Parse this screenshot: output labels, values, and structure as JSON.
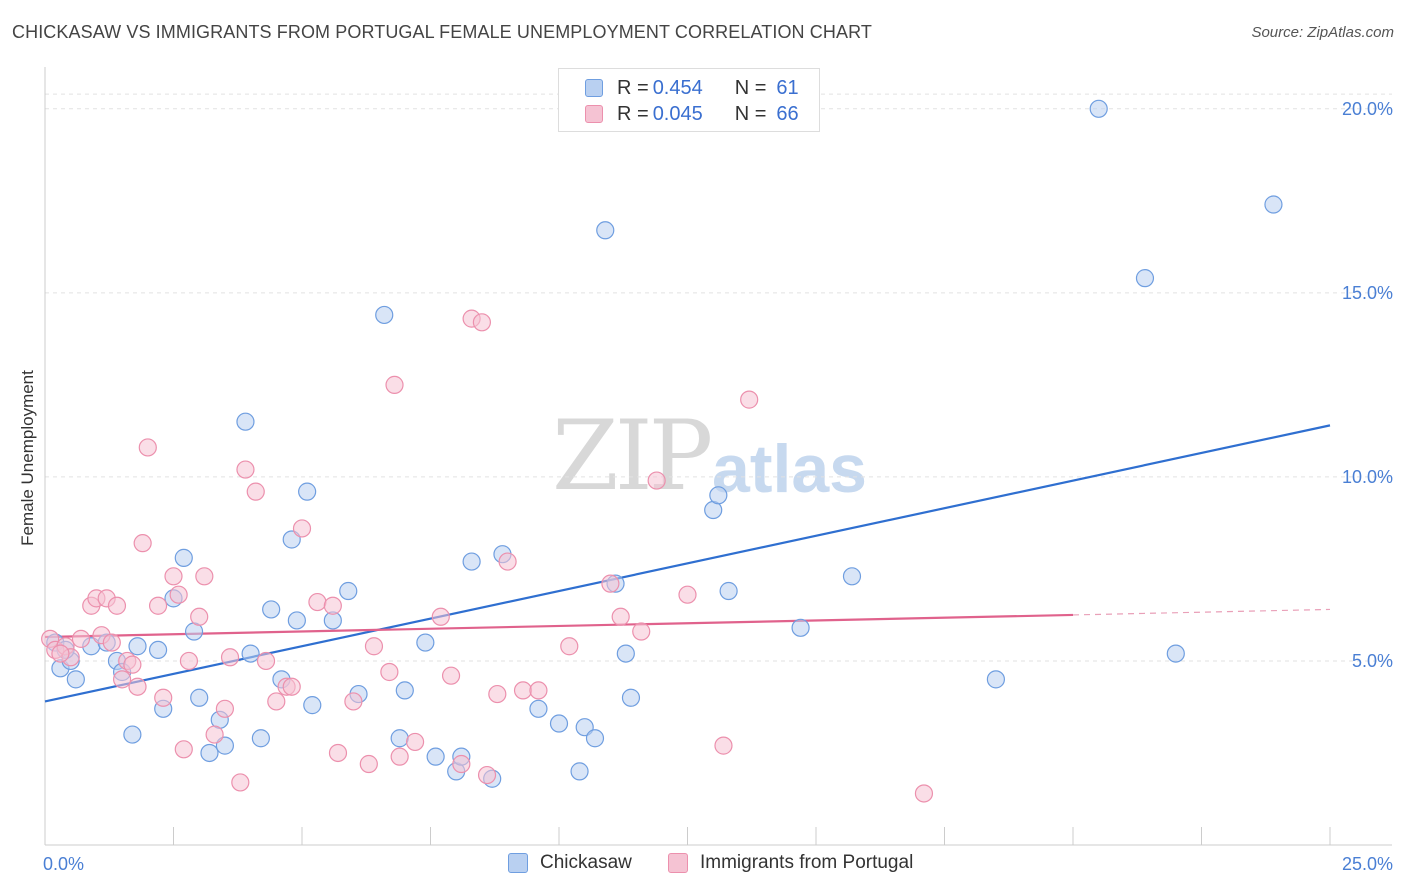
{
  "title": "CHICKASAW VS IMMIGRANTS FROM PORTUGAL FEMALE UNEMPLOYMENT CORRELATION CHART",
  "source": "Source: ZipAtlas.com",
  "watermark": {
    "zip": "ZIP",
    "atlas": "atlas"
  },
  "legend": {
    "rows": [
      {
        "r_label": "R = ",
        "r_value": "0.454",
        "n_label": "N = ",
        "n_value": "61",
        "color": "#6f9ee0"
      },
      {
        "r_label": "R = ",
        "r_value": "0.045",
        "n_label": "N = ",
        "n_value": "66",
        "color": "#ec90ad"
      }
    ]
  },
  "bottom_legend": {
    "a": "Chickasaw",
    "b": "Immigrants from Portugal"
  },
  "chart_data": {
    "type": "scatter",
    "xlabel": "",
    "ylabel": "Female Unemployment",
    "xlim": [
      0,
      25
    ],
    "ylim": [
      0,
      21
    ],
    "x_ticks": [
      "0.0%",
      "25.0%"
    ],
    "y_ticks": [
      {
        "value": 5,
        "label": "5.0%"
      },
      {
        "value": 10,
        "label": "10.0%"
      },
      {
        "value": 15,
        "label": "15.0%"
      },
      {
        "value": 20,
        "label": "20.0%"
      }
    ],
    "series": [
      {
        "name": "Chickasaw",
        "color": "#6f9ee0",
        "fill": "#b9d0f1",
        "trend": {
          "x0": 0,
          "y0": 3.9,
          "x1": 25,
          "y1": 11.4
        },
        "points": [
          [
            0.2,
            5.5
          ],
          [
            0.3,
            4.8
          ],
          [
            0.5,
            5.0
          ],
          [
            0.6,
            4.5
          ],
          [
            0.9,
            5.4
          ],
          [
            1.2,
            5.5
          ],
          [
            1.4,
            5.0
          ],
          [
            1.5,
            4.7
          ],
          [
            1.7,
            3.0
          ],
          [
            1.8,
            5.4
          ],
          [
            2.2,
            5.3
          ],
          [
            2.3,
            3.7
          ],
          [
            2.5,
            6.7
          ],
          [
            2.7,
            7.8
          ],
          [
            2.9,
            5.8
          ],
          [
            3.0,
            4.0
          ],
          [
            3.2,
            2.5
          ],
          [
            3.4,
            3.4
          ],
          [
            3.5,
            2.7
          ],
          [
            3.9,
            11.5
          ],
          [
            4.0,
            5.2
          ],
          [
            4.2,
            2.9
          ],
          [
            4.4,
            6.4
          ],
          [
            4.6,
            4.5
          ],
          [
            4.8,
            8.3
          ],
          [
            4.9,
            6.1
          ],
          [
            5.1,
            9.6
          ],
          [
            5.2,
            3.8
          ],
          [
            5.6,
            6.1
          ],
          [
            5.9,
            6.9
          ],
          [
            6.1,
            4.1
          ],
          [
            6.6,
            14.4
          ],
          [
            6.9,
            2.9
          ],
          [
            7.0,
            4.2
          ],
          [
            7.4,
            5.5
          ],
          [
            7.6,
            2.4
          ],
          [
            8.0,
            2.0
          ],
          [
            8.1,
            2.4
          ],
          [
            8.3,
            7.7
          ],
          [
            8.7,
            1.8
          ],
          [
            8.9,
            7.9
          ],
          [
            9.6,
            3.7
          ],
          [
            10.0,
            3.3
          ],
          [
            10.4,
            2.0
          ],
          [
            10.5,
            3.2
          ],
          [
            10.7,
            2.9
          ],
          [
            10.9,
            16.7
          ],
          [
            11.1,
            7.1
          ],
          [
            11.3,
            5.2
          ],
          [
            11.4,
            4.0
          ],
          [
            13.0,
            9.1
          ],
          [
            13.1,
            9.5
          ],
          [
            13.3,
            6.9
          ],
          [
            14.7,
            5.9
          ],
          [
            15.7,
            7.3
          ],
          [
            18.5,
            4.5
          ],
          [
            20.5,
            20.0
          ],
          [
            21.4,
            15.4
          ],
          [
            22.0,
            5.2
          ],
          [
            23.9,
            17.4
          ],
          [
            0.4,
            5.3
          ]
        ]
      },
      {
        "name": "Immigrants from Portugal",
        "color": "#ec90ad",
        "fill": "#f5c3d3",
        "trend": {
          "x0": 0,
          "y0": 5.65,
          "x1": 20.0,
          "y1": 6.25
        },
        "trend_dashed": {
          "x0": 20.0,
          "y0": 6.25,
          "x1": 25,
          "y1": 6.4
        },
        "points": [
          [
            0.1,
            5.6
          ],
          [
            0.2,
            5.3
          ],
          [
            0.4,
            5.4
          ],
          [
            0.5,
            5.1
          ],
          [
            0.7,
            5.6
          ],
          [
            0.9,
            6.5
          ],
          [
            1.0,
            6.7
          ],
          [
            1.1,
            5.7
          ],
          [
            1.2,
            6.7
          ],
          [
            1.4,
            6.5
          ],
          [
            1.5,
            4.5
          ],
          [
            1.6,
            5.0
          ],
          [
            1.7,
            4.9
          ],
          [
            1.8,
            4.3
          ],
          [
            1.9,
            8.2
          ],
          [
            2.0,
            10.8
          ],
          [
            2.2,
            6.5
          ],
          [
            2.3,
            4.0
          ],
          [
            2.5,
            7.3
          ],
          [
            2.6,
            6.8
          ],
          [
            2.7,
            2.6
          ],
          [
            2.8,
            5.0
          ],
          [
            3.0,
            6.2
          ],
          [
            3.1,
            7.3
          ],
          [
            3.3,
            3.0
          ],
          [
            3.5,
            3.7
          ],
          [
            3.6,
            5.1
          ],
          [
            3.8,
            1.7
          ],
          [
            3.9,
            10.2
          ],
          [
            4.1,
            9.6
          ],
          [
            4.3,
            5.0
          ],
          [
            4.5,
            3.9
          ],
          [
            4.7,
            4.3
          ],
          [
            4.8,
            4.3
          ],
          [
            5.0,
            8.6
          ],
          [
            5.3,
            6.6
          ],
          [
            5.6,
            6.5
          ],
          [
            5.7,
            2.5
          ],
          [
            6.0,
            3.9
          ],
          [
            6.3,
            2.2
          ],
          [
            6.4,
            5.4
          ],
          [
            6.7,
            4.7
          ],
          [
            6.8,
            12.5
          ],
          [
            6.9,
            2.4
          ],
          [
            7.2,
            2.8
          ],
          [
            7.7,
            6.2
          ],
          [
            7.9,
            4.6
          ],
          [
            8.1,
            2.2
          ],
          [
            8.3,
            14.3
          ],
          [
            8.5,
            14.2
          ],
          [
            8.6,
            1.9
          ],
          [
            8.8,
            4.1
          ],
          [
            9.0,
            7.7
          ],
          [
            9.3,
            4.2
          ],
          [
            9.6,
            4.2
          ],
          [
            10.2,
            5.4
          ],
          [
            11.0,
            7.1
          ],
          [
            11.2,
            6.2
          ],
          [
            11.6,
            5.8
          ],
          [
            11.9,
            9.9
          ],
          [
            12.5,
            6.8
          ],
          [
            13.2,
            2.7
          ],
          [
            13.7,
            12.1
          ],
          [
            17.1,
            1.4
          ],
          [
            0.3,
            5.2
          ],
          [
            1.3,
            5.5
          ]
        ]
      }
    ]
  }
}
